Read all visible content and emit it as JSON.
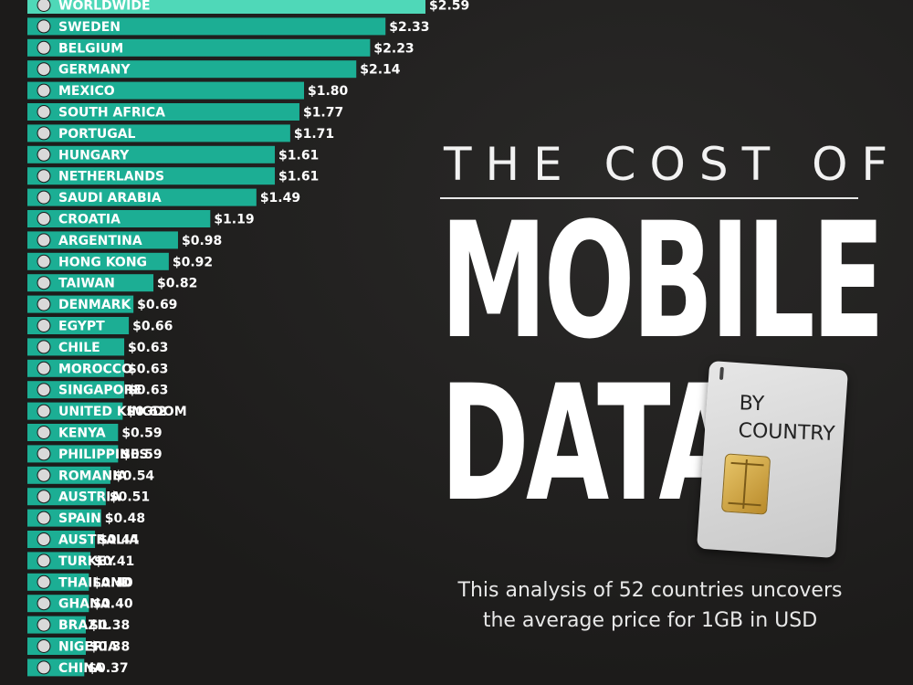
{
  "title": {
    "line1": "THE COST OF",
    "line2": "MOBILE",
    "line3": "DATA",
    "badge": "BY COUNTRY"
  },
  "subtitle": "This analysis of 52 countries uncovers the average price for 1GB in USD",
  "colors": {
    "bar": "#1cae94",
    "bar_highlight": "#4fd8b8",
    "background": "#1f1e1d",
    "text": "#ffffff"
  },
  "chart_data": {
    "type": "bar",
    "orientation": "horizontal",
    "categories": [
      "WORLDWIDE",
      "SWEDEN",
      "BELGIUM",
      "GERMANY",
      "MEXICO",
      "SOUTH AFRICA",
      "PORTUGAL",
      "HUNGARY",
      "NETHERLANDS",
      "SAUDI ARABIA",
      "CROATIA",
      "ARGENTINA",
      "HONG KONG",
      "TAIWAN",
      "DENMARK",
      "EGYPT",
      "CHILE",
      "MOROCCO",
      "SINGAPORE",
      "UNITED KINGDOM",
      "KENYA",
      "PHILIPPINES",
      "ROMANIA",
      "AUSTRIA",
      "SPAIN",
      "AUSTRALIA",
      "TURKEY",
      "THAILAND",
      "GHANA",
      "BRAZIL",
      "NIGERIA",
      "CHINA"
    ],
    "values": [
      2.59,
      2.33,
      2.23,
      2.14,
      1.8,
      1.77,
      1.71,
      1.61,
      1.61,
      1.49,
      1.19,
      0.98,
      0.92,
      0.82,
      0.69,
      0.66,
      0.63,
      0.63,
      0.63,
      0.62,
      0.59,
      0.59,
      0.54,
      0.51,
      0.48,
      0.44,
      0.41,
      0.4,
      0.4,
      0.38,
      0.38,
      0.37
    ],
    "value_labels": [
      "$2.59",
      "$2.33",
      "$2.23",
      "$2.14",
      "$1.80",
      "$1.77",
      "$1.71",
      "$1.61",
      "$1.61",
      "$1.49",
      "$1.19",
      "$0.98",
      "$0.92",
      "$0.82",
      "$0.69",
      "$0.66",
      "$0.63",
      "$0.63",
      "$0.63",
      "$0.62",
      "$0.59",
      "$0.59",
      "$0.54",
      "$0.51",
      "$0.48",
      "$0.44",
      "$0.41",
      "$0.40",
      "$0.40",
      "$0.38",
      "$0.38",
      "$0.37"
    ],
    "highlight": "WORLDWIDE",
    "xlim": [
      0,
      2.59
    ]
  }
}
